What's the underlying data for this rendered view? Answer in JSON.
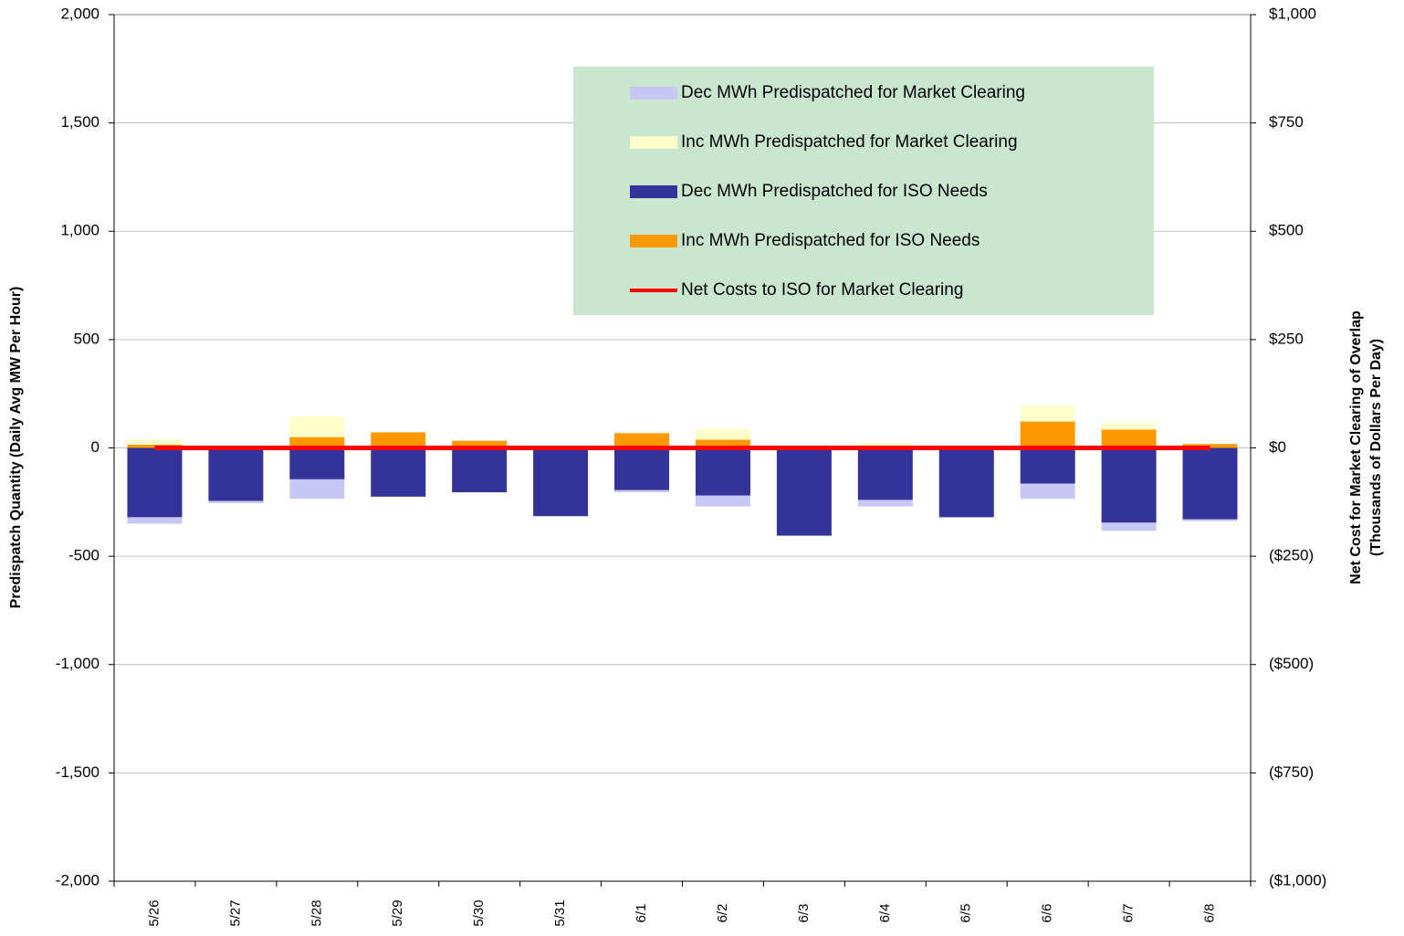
{
  "chart_data": {
    "type": "bar",
    "stacked": true,
    "categories": [
      "5/26",
      "5/27",
      "5/28",
      "5/29",
      "5/30",
      "5/31",
      "6/1",
      "6/2",
      "6/3",
      "6/4",
      "6/5",
      "6/6",
      "6/7",
      "6/8"
    ],
    "y_label": "Predispatch Quantity (Daily Avg MW Per Hour)",
    "y2_label": [
      "Net Cost for Market Clearing of Overlap",
      "(Thousands of Dollars Per Day)"
    ],
    "ylim": [
      -2000,
      2000
    ],
    "yticks": [
      {
        "value": 2000,
        "label": "2,000"
      },
      {
        "value": 1500,
        "label": "1,500"
      },
      {
        "value": 1000,
        "label": "1,000"
      },
      500,
      0,
      -500,
      {
        "value": -1000,
        "label": "-1,000"
      },
      {
        "value": -1500,
        "label": "-1,500"
      },
      {
        "value": -2000,
        "label": "-2,000"
      }
    ],
    "y2lim": [
      -1000,
      1000
    ],
    "y2ticks": [
      {
        "value": 1000,
        "label": "$1,000"
      },
      {
        "value": 750,
        "label": "$750"
      },
      {
        "value": 500,
        "label": "$500"
      },
      {
        "value": 250,
        "label": "$250"
      },
      {
        "value": 0,
        "label": "$0"
      },
      {
        "value": -250,
        "label": "($250)"
      },
      {
        "value": -500,
        "label": "($500)"
      },
      {
        "value": -750,
        "label": "($750)"
      },
      {
        "value": -1000,
        "label": "($1,000)"
      }
    ],
    "grid": true,
    "legend": "upper-right",
    "series": [
      {
        "name": "Dec MWh Predispatched for Market Clearing",
        "color": "#c8c8f5",
        "values": [
          -30,
          -10,
          -90,
          0,
          0,
          0,
          -10,
          -50,
          0,
          -30,
          0,
          -70,
          -38,
          -8
        ]
      },
      {
        "name": "Inc MWh Predispatched for Market Clearing",
        "color": "#ffffcc",
        "values": [
          25,
          0,
          95,
          0,
          0,
          0,
          0,
          50,
          0,
          25,
          0,
          73,
          33,
          0
        ]
      },
      {
        "name": "Dec MWh Predispatched for ISO Needs",
        "color": "#333399",
        "values": [
          -320,
          -245,
          -145,
          -225,
          -205,
          -315,
          -195,
          -220,
          -405,
          -240,
          -320,
          -165,
          -345,
          -330
        ]
      },
      {
        "name": "Inc MWh Predispatched for ISO Needs",
        "color": "#ff9900",
        "values": [
          15,
          0,
          50,
          72,
          33,
          0,
          68,
          38,
          0,
          0,
          0,
          122,
          85,
          18
        ]
      },
      {
        "name": "Net Costs to ISO for Market Clearing",
        "color": "#ff0000",
        "type": "line",
        "axis": "y2",
        "values": [
          0,
          0,
          0,
          0,
          0,
          0,
          0,
          0,
          0,
          0,
          0,
          0,
          0,
          0
        ]
      }
    ]
  }
}
